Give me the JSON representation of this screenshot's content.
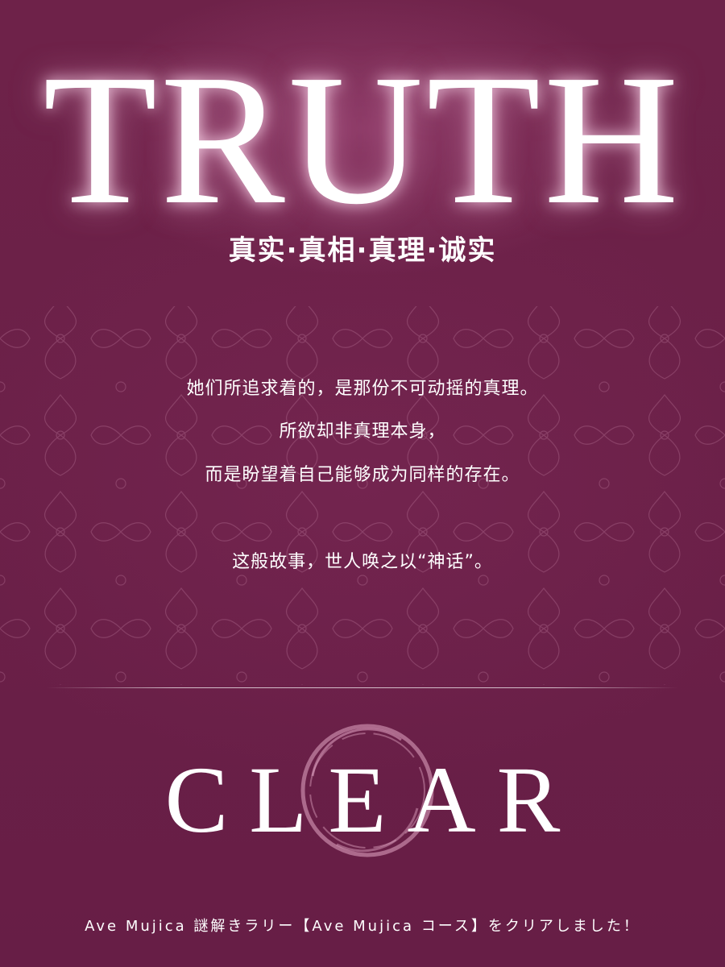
{
  "title": "TRUTH",
  "subtitle": "真实·真相·真理·诚实",
  "body": {
    "lines": [
      "她们所追求着的，是那份不可动摇的真理。",
      "所欲却非真理本身，",
      "而是盼望着自己能够成为同样的存在。",
      "这般故事，世人唤之以“神话”。"
    ]
  },
  "result": "CLEAR",
  "footer": "Ave Mujica 謎解きラリー【Ave Mujica コース】をクリアしました！",
  "colors": {
    "background": "#6b2149",
    "text": "#ffffff",
    "seal": "#c98aaa"
  }
}
